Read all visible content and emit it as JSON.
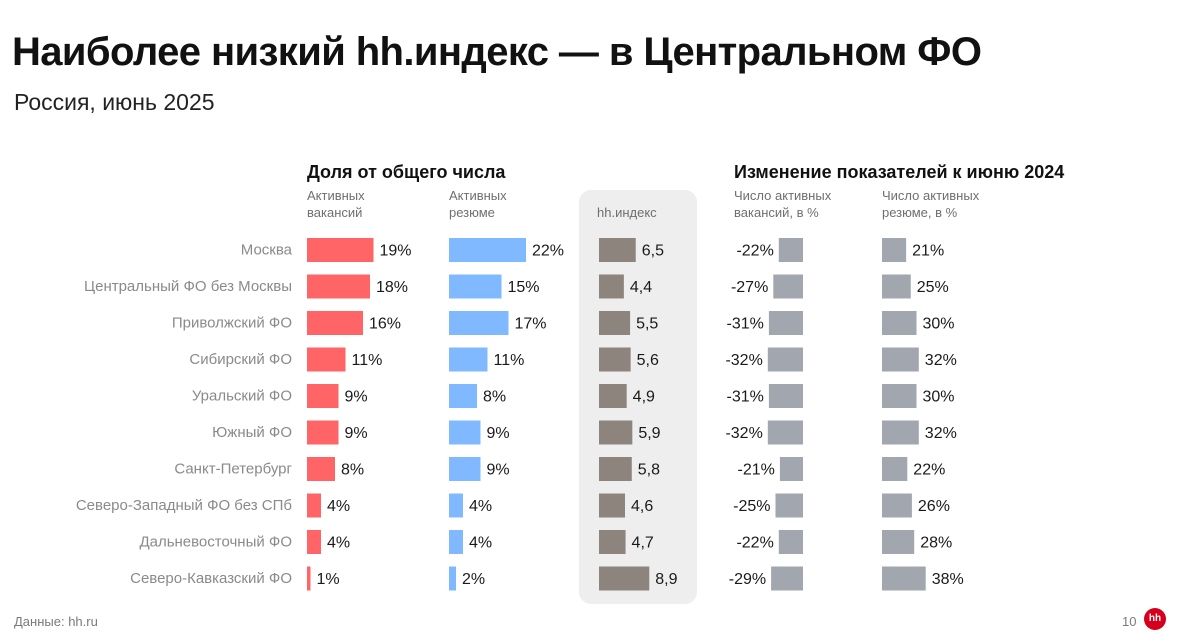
{
  "title": "Наиболее низкий hh.индекс — в Центральном ФО",
  "subtitle": "Россия, июнь 2025",
  "group_share": "Доля от общего числа",
  "group_change": "Изменение показателей к июню 2024",
  "col_vac_share": "Активных\nвакансий",
  "col_res_share": "Активных\nрезюме",
  "col_index": "hh.индекс",
  "col_vac_change": "Число активных\nвакансий, в %",
  "col_res_change": "Число активных\nрезюме, в %",
  "footer_source": "Данные: hh.ru",
  "page_number": "10",
  "logo_text": "hh",
  "colors": {
    "vacancies": "#ff6466",
    "resumes": "#80b9ff",
    "index": "#8c847d",
    "change": "#a2a6af",
    "panel": "#eeeeee"
  },
  "chart_data": {
    "type": "bar",
    "categories": [
      "Москва",
      "Центральный ФО без Москвы",
      "Приволжский ФО",
      "Сибирский ФО",
      "Уральский ФО",
      "Южный ФО",
      "Санкт-Петербург",
      "Северо-Западный ФО без СПб",
      "Дальневосточный ФО",
      "Северо-Кавказский ФО"
    ],
    "series": [
      {
        "name": "Активных вакансий",
        "unit": "%",
        "values": [
          19,
          18,
          16,
          11,
          9,
          9,
          8,
          4,
          4,
          1
        ],
        "labels": [
          "19%",
          "18%",
          "16%",
          "11%",
          "9%",
          "9%",
          "8%",
          "4%",
          "4%",
          "1%"
        ]
      },
      {
        "name": "Активных резюме",
        "unit": "%",
        "values": [
          22,
          15,
          17,
          11,
          8,
          9,
          9,
          4,
          4,
          2
        ],
        "labels": [
          "22%",
          "15%",
          "17%",
          "11%",
          "8%",
          "9%",
          "9%",
          "4%",
          "4%",
          "2%"
        ]
      },
      {
        "name": "hh.индекс",
        "values": [
          6.5,
          4.4,
          5.5,
          5.6,
          4.9,
          5.9,
          5.8,
          4.6,
          4.7,
          8.9
        ],
        "labels": [
          "6,5",
          "4,4",
          "5,5",
          "5,6",
          "4,9",
          "5,9",
          "5,8",
          "4,6",
          "4,7",
          "8,9"
        ]
      },
      {
        "name": "Число активных вакансий, в %",
        "unit": "%",
        "values": [
          -22,
          -27,
          -31,
          -32,
          -31,
          -32,
          -21,
          -25,
          -22,
          -29
        ],
        "labels": [
          "-22%",
          "-27%",
          "-31%",
          "-32%",
          "-31%",
          "-32%",
          "-21%",
          "-25%",
          "-22%",
          "-29%"
        ]
      },
      {
        "name": "Число активных резюме, в %",
        "unit": "%",
        "values": [
          21,
          25,
          30,
          32,
          30,
          32,
          22,
          26,
          28,
          38
        ],
        "labels": [
          "21%",
          "25%",
          "30%",
          "32%",
          "30%",
          "32%",
          "22%",
          "26%",
          "28%",
          "38%"
        ]
      }
    ]
  }
}
